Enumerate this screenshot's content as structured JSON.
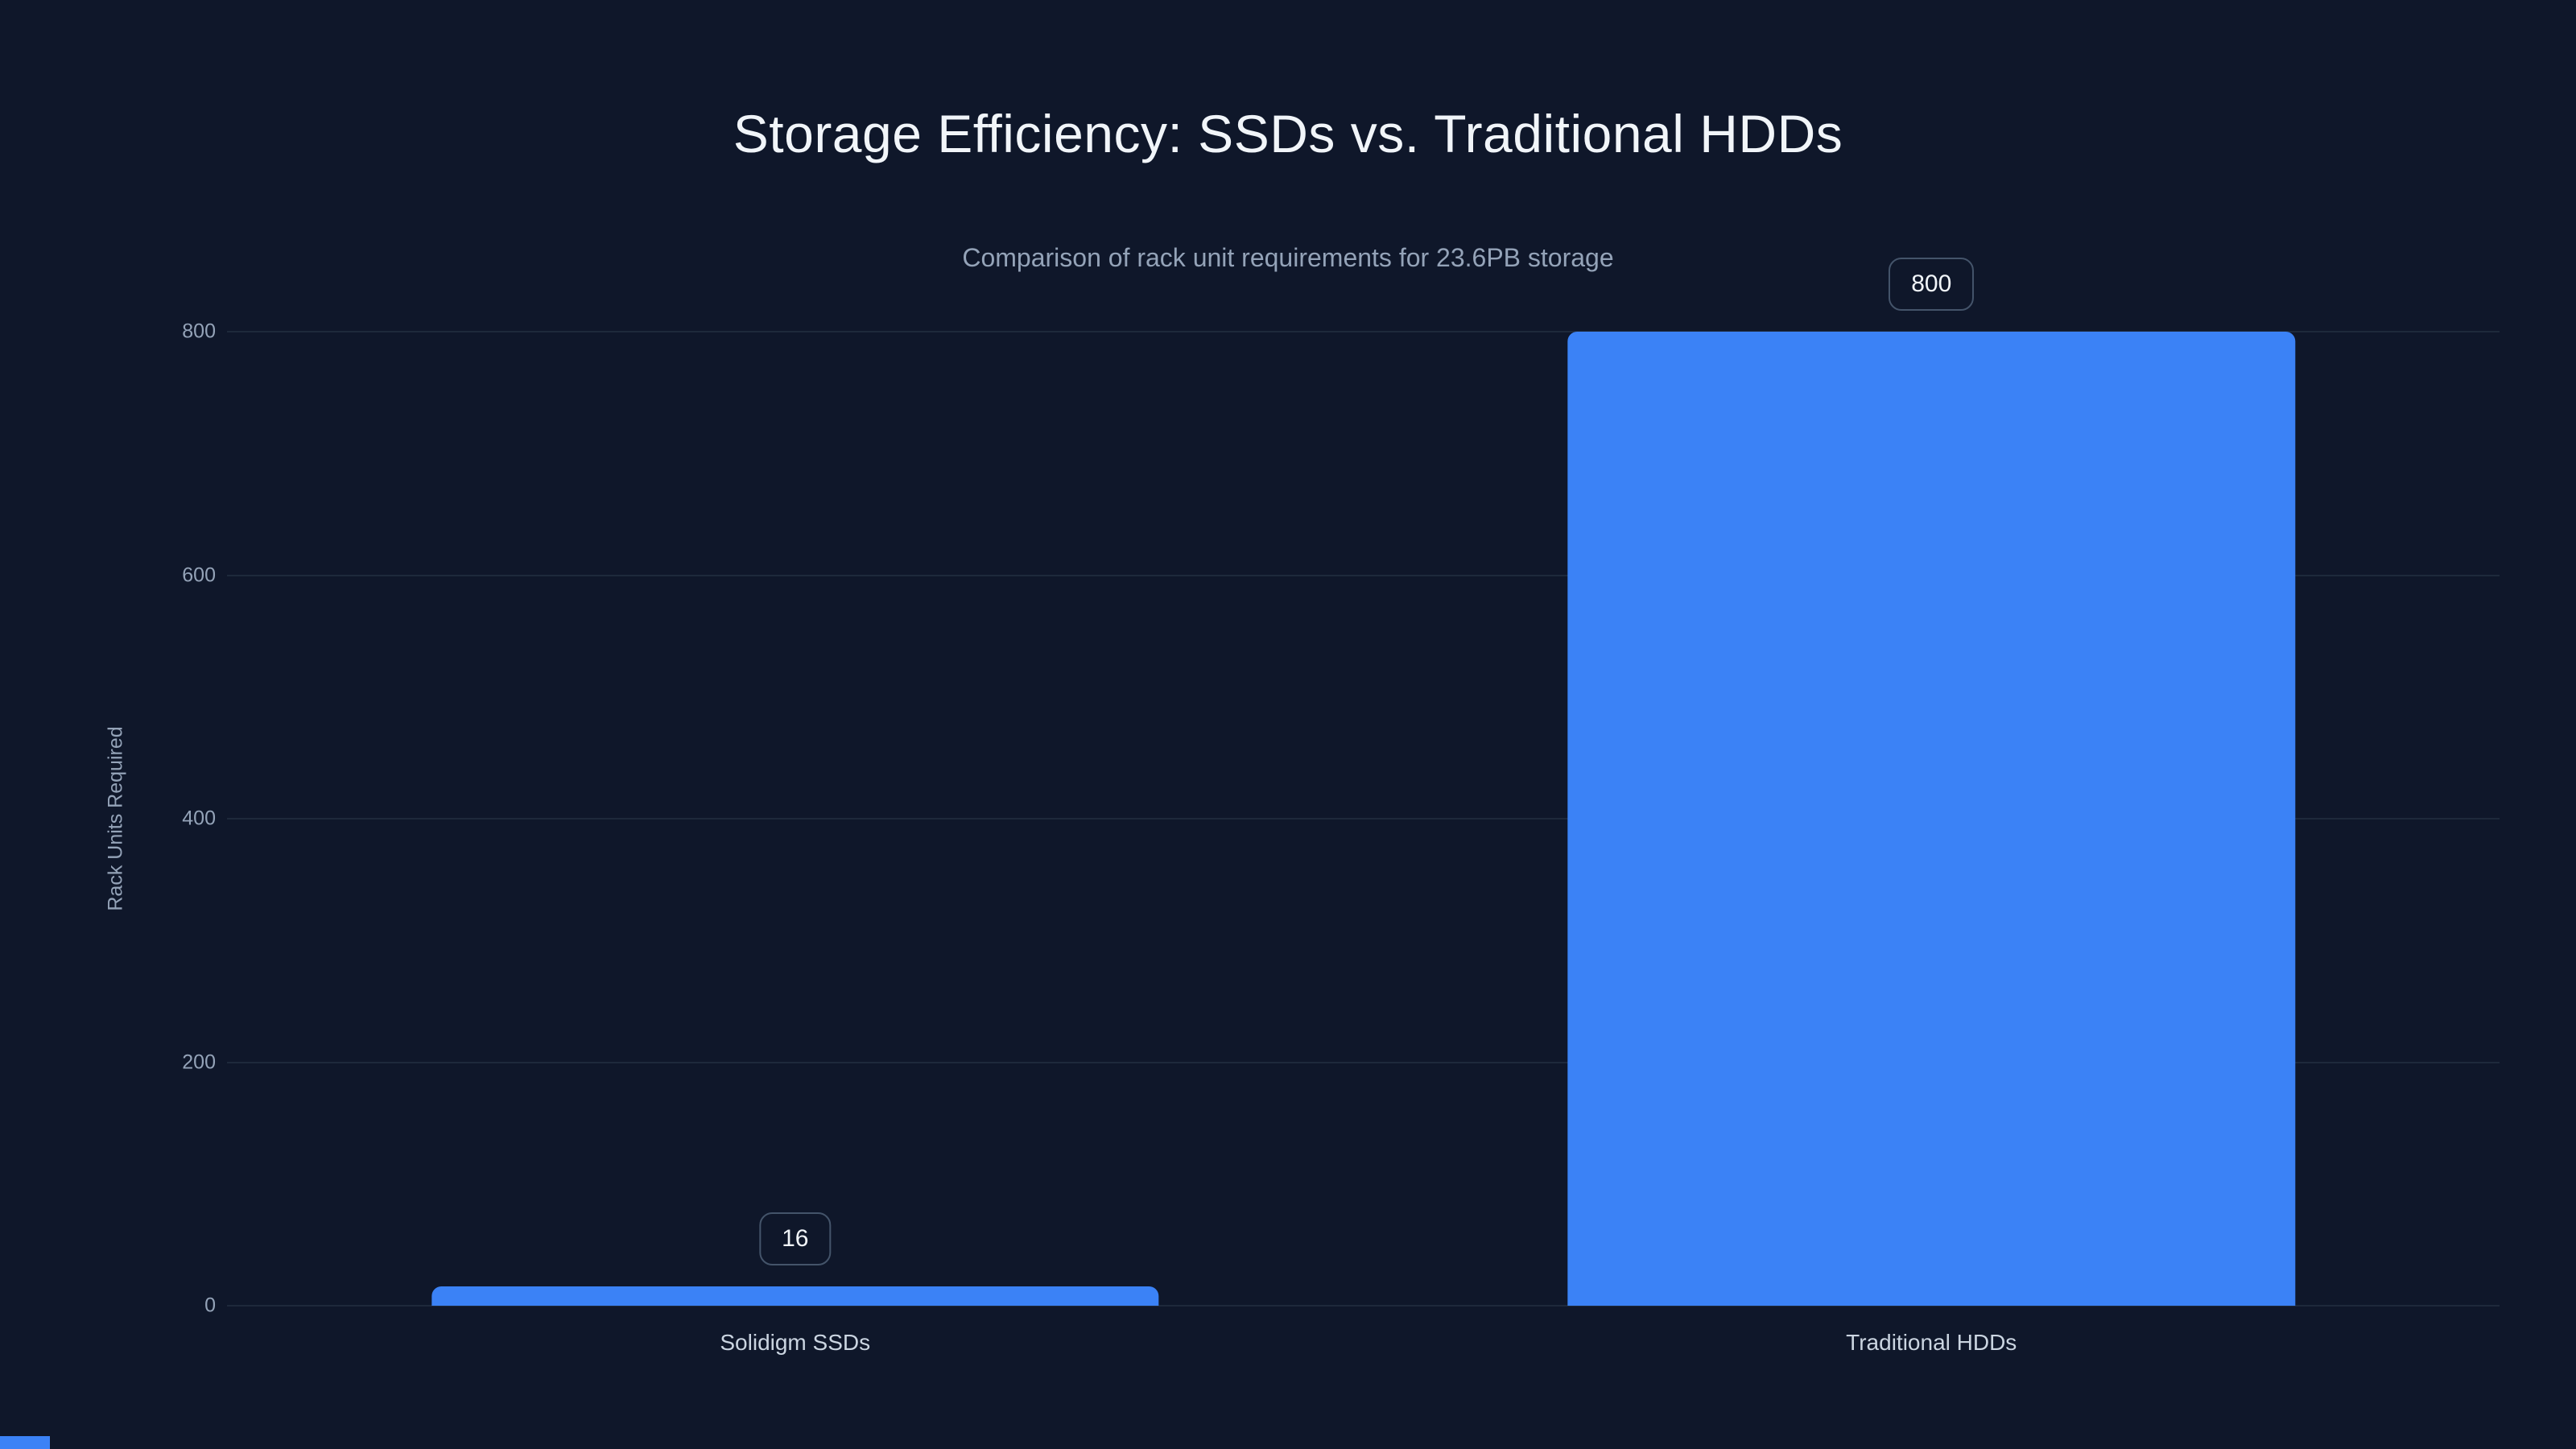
{
  "page": {
    "title": "Storage Efficiency: SSDs vs. Traditional HDDs",
    "subtitle": "Comparison of rack unit requirements for 23.6PB storage"
  },
  "chart_data": {
    "type": "bar",
    "title": "Storage Efficiency: SSDs vs. Traditional HDDs",
    "subtitle": "Comparison of rack unit requirements for 23.6PB storage",
    "categories": [
      "Solidigm SSDs",
      "Traditional HDDs"
    ],
    "values": [
      16,
      800
    ],
    "xlabel": "",
    "ylabel": "Rack Units Required",
    "ylim": [
      0,
      800
    ],
    "yticks": [
      0,
      200,
      400,
      600,
      800
    ],
    "grid": true,
    "legend": false,
    "bar_color": "#3b82f6",
    "background_color": "#0f172a",
    "grid_color": "#1e293b",
    "title_color": "#f1f5f9",
    "text_color": "#94a3b8"
  }
}
